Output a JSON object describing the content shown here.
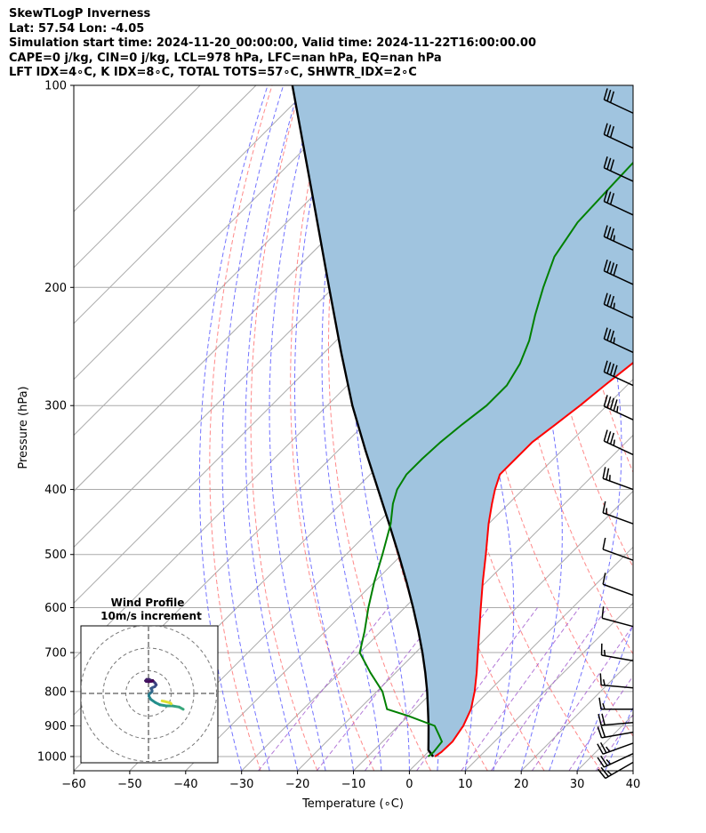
{
  "header": {
    "line1": "SkewTLogP Inverness",
    "line2": "Lat: 57.54   Lon: -4.05",
    "line3": "Simulation start time: 2024-11-20_00:00:00, Valid time: 2024-11-22T16:00:00.00",
    "line4": "CAPE=0 j/kg, CIN=0 j/kg, LCL=978 hPa, LFC=nan hPa, EQ=nan hPa",
    "line5": "LFT IDX=4∘C, K IDX=8∘C, TOTAL TOTS=57∘C, SHWTR_IDX=2∘C"
  },
  "chart_data": {
    "type": "line",
    "chart_kind": "skew-T log-P",
    "xlabel": "Temperature (∘C)",
    "ylabel": "Pressure (hPa)",
    "xlim": [
      -60,
      40
    ],
    "ylim": [
      1050,
      100
    ],
    "y_scale": "log",
    "grid": true,
    "x_ticks": [
      -60,
      -50,
      -40,
      -30,
      -20,
      -10,
      0,
      10,
      20,
      30,
      40
    ],
    "x_tick_labels": [
      "−60",
      "−50",
      "−40",
      "−30",
      "−20",
      "−10",
      "0",
      "10",
      "20",
      "30",
      "40"
    ],
    "y_ticks": [
      1000,
      900,
      800,
      700,
      600,
      500,
      400,
      300,
      200,
      100
    ],
    "y_tick_labels": [
      "1000",
      "900",
      "800",
      "700",
      "600",
      "500",
      "400",
      "300",
      "200",
      "100"
    ],
    "colors": {
      "temperature": "#ff0000",
      "dewpoint": "#008000",
      "parcel": "#000000",
      "cape_fill": "#a0c4df",
      "dry_adiabat": "#ff6b6b",
      "moist_adiabat": "#5a5aff",
      "mixing_ratio": "#a55fd0",
      "isotherm": "#aaaaaa"
    },
    "series": [
      {
        "key": "temperature",
        "pressure": [
          1000,
          985,
          950,
          900,
          850,
          800,
          750,
          700,
          650,
          600,
          550,
          500,
          450,
          420,
          400,
          380,
          360,
          340,
          320,
          300,
          280,
          260,
          240,
          220,
          200,
          180,
          160,
          140,
          120,
          100
        ],
        "temperature": [
          2.0,
          2.4,
          2.5,
          1.6,
          0.0,
          -2.5,
          -5.5,
          -8.9,
          -12.5,
          -16.4,
          -20.6,
          -25.0,
          -30.0,
          -33.0,
          -35.0,
          -36.8,
          -36.8,
          -36.8,
          -35.8,
          -34.8,
          -34.0,
          -33.0,
          -32.0,
          -30.5,
          -29.0,
          -27.5,
          -26.0,
          -24.0,
          -21.5,
          -19.0
        ]
      },
      {
        "key": "dewpoint",
        "pressure": [
          1000,
          985,
          950,
          930,
          900,
          870,
          850,
          800,
          750,
          700,
          650,
          600,
          550,
          500,
          450,
          420,
          400,
          380,
          360,
          340,
          320,
          300,
          280,
          260,
          240,
          220,
          200,
          180,
          160,
          140,
          120,
          100
        ],
        "temperature": [
          0.8,
          1.0,
          0.6,
          -1.0,
          -3.5,
          -10.0,
          -15.0,
          -19.0,
          -24.5,
          -30.0,
          -33.0,
          -36.5,
          -40.0,
          -43.5,
          -47.5,
          -50.7,
          -52.5,
          -53.5,
          -53.5,
          -53.2,
          -52.5,
          -51.5,
          -51.5,
          -53.0,
          -55.5,
          -59.0,
          -62.5,
          -66.0,
          -68.0,
          -68.5,
          -69.0,
          -69.5
        ]
      },
      {
        "key": "parcel",
        "pressure": [
          1000,
          978,
          950,
          900,
          850,
          800,
          750,
          700,
          650,
          600,
          550,
          500,
          450,
          400,
          350,
          300,
          250,
          200,
          150,
          100
        ],
        "temperature": [
          1.7,
          -0.3,
          -1.8,
          -4.6,
          -7.7,
          -11.0,
          -14.7,
          -18.8,
          -23.4,
          -28.5,
          -34.2,
          -40.6,
          -47.8,
          -55.9,
          -65.1,
          -75.5,
          -87.0,
          -100.8,
          -118.5,
          -143.5
        ]
      }
    ],
    "wind_profile": {
      "title": "Wind Profile",
      "subtitle": "10m/s increment",
      "rings_ms": [
        10,
        20,
        30
      ],
      "colormap": "viridis",
      "u": [
        15.3,
        13.5,
        10.5,
        7.8,
        5.0,
        3.0,
        1.0,
        0.2,
        0.2,
        1.1,
        1.3,
        1.6,
        1.5,
        1.1,
        1.8,
        2.8,
        3.4,
        3.0,
        2.3,
        1.3,
        0.3,
        -0.8,
        -1.3,
        -1.0,
        0.2,
        1.5,
        1.9
      ],
      "v": [
        -7.0,
        -6.0,
        -5.5,
        -5.5,
        -5.0,
        -4.0,
        -2.6,
        -1.2,
        -0.5,
        0.4,
        0.5,
        1.0,
        1.5,
        2.2,
        2.6,
        3.0,
        3.8,
        4.5,
        5.2,
        5.7,
        6.2,
        6.2,
        5.6,
        5.3,
        5.2,
        5.4,
        5.7
      ],
      "surface_u": [
        10.0,
        9.6,
        7.0,
        6.0
      ],
      "surface_v": [
        -4.6,
        -4.2,
        -3.5,
        -3.3
      ]
    },
    "wind_barbs": [
      {
        "pressure": 1020,
        "speed_kt": 25,
        "dir": 240
      },
      {
        "pressure": 990,
        "speed_kt": 25,
        "dir": 245
      },
      {
        "pressure": 955,
        "speed_kt": 25,
        "dir": 250
      },
      {
        "pressure": 920,
        "speed_kt": 20,
        "dir": 260
      },
      {
        "pressure": 890,
        "speed_kt": 20,
        "dir": 265
      },
      {
        "pressure": 850,
        "speed_kt": 15,
        "dir": 270
      },
      {
        "pressure": 790,
        "speed_kt": 15,
        "dir": 275
      },
      {
        "pressure": 720,
        "speed_kt": 15,
        "dir": 280
      },
      {
        "pressure": 640,
        "speed_kt": 10,
        "dir": 285
      },
      {
        "pressure": 575,
        "speed_kt": 10,
        "dir": 290
      },
      {
        "pressure": 510,
        "speed_kt": 10,
        "dir": 290
      },
      {
        "pressure": 450,
        "speed_kt": 15,
        "dir": 290
      },
      {
        "pressure": 400,
        "speed_kt": 25,
        "dir": 290
      },
      {
        "pressure": 355,
        "speed_kt": 35,
        "dir": 295
      },
      {
        "pressure": 315,
        "speed_kt": 45,
        "dir": 295
      },
      {
        "pressure": 280,
        "speed_kt": 40,
        "dir": 295
      },
      {
        "pressure": 250,
        "speed_kt": 35,
        "dir": 295
      },
      {
        "pressure": 222,
        "speed_kt": 35,
        "dir": 295
      },
      {
        "pressure": 198,
        "speed_kt": 40,
        "dir": 295
      },
      {
        "pressure": 176,
        "speed_kt": 35,
        "dir": 295
      },
      {
        "pressure": 156,
        "speed_kt": 30,
        "dir": 295
      },
      {
        "pressure": 139,
        "speed_kt": 30,
        "dir": 295
      },
      {
        "pressure": 124,
        "speed_kt": 30,
        "dir": 295
      },
      {
        "pressure": 110,
        "speed_kt": 30,
        "dir": 295
      }
    ]
  }
}
